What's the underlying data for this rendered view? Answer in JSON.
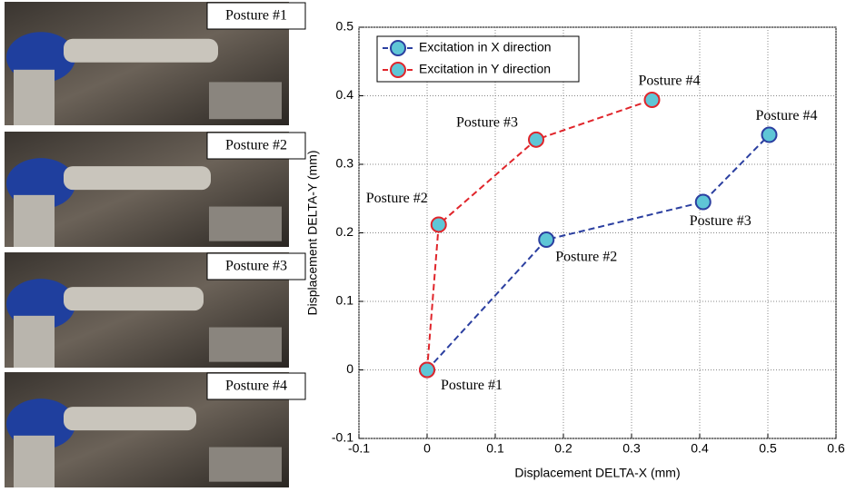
{
  "panels": [
    "Posture #1",
    "Posture #2",
    "Posture #3",
    "Posture #4"
  ],
  "chart_data": {
    "type": "line",
    "xlabel": "Displacement DELTA-X (mm)",
    "ylabel": "Displacement DELTA-Y (mm)",
    "xlim": [
      -0.1,
      0.6
    ],
    "ylim": [
      -0.1,
      0.5
    ],
    "xticks": [
      -0.1,
      0,
      0.1,
      0.2,
      0.3,
      0.4,
      0.5,
      0.6
    ],
    "yticks": [
      -0.1,
      0,
      0.1,
      0.2,
      0.3,
      0.4,
      0.5
    ],
    "grid": true,
    "legend": "upper left",
    "marker_color": "#5fc6d6",
    "series": [
      {
        "name": "Excitation in X direction",
        "color": "#2b3fa0",
        "x": [
          0,
          0.175,
          0.405,
          0.502
        ],
        "values": [
          0,
          0.19,
          0.245,
          0.343
        ],
        "annotations": [
          "Posture #1",
          "Posture #2",
          "Posture #3",
          "Posture #4"
        ]
      },
      {
        "name": "Excitation in Y direction",
        "color": "#e0252b",
        "x": [
          0,
          0.017,
          0.16,
          0.33
        ],
        "values": [
          0,
          0.212,
          0.336,
          0.394
        ],
        "annotations": [
          null,
          "Posture #2",
          "Posture #3",
          "Posture #4"
        ]
      }
    ]
  }
}
